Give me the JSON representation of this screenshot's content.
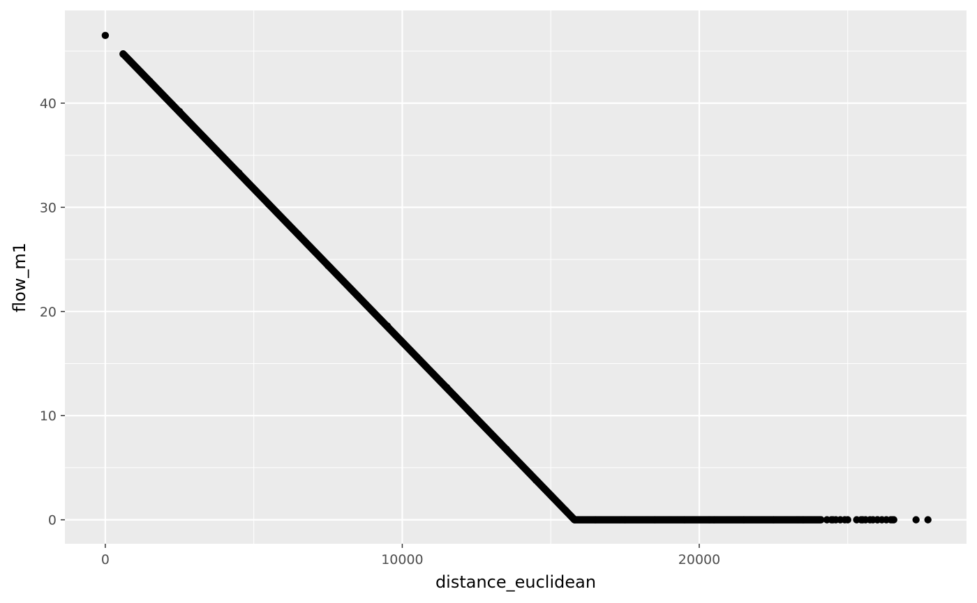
{
  "chart_data": {
    "type": "scatter",
    "title": "",
    "xlabel": "distance_euclidean",
    "ylabel": "flow_m1",
    "xlim": [
      -1360,
      29000
    ],
    "ylim": [
      -2.3,
      48.9
    ],
    "x_ticks": [
      0,
      10000,
      20000
    ],
    "x_tick_labels": [
      "0",
      "10000",
      "20000"
    ],
    "y_ticks": [
      0,
      10,
      20,
      30,
      40
    ],
    "y_tick_labels": [
      "0",
      "10",
      "20",
      "30",
      "40"
    ],
    "grid": true,
    "legend": "none",
    "colors": {
      "panel": "#ebebeb",
      "grid": "#ffffff",
      "points": "#000000"
    },
    "trend": {
      "description_free": true,
      "intercept": 46.5,
      "slope_per_unit": -0.00294,
      "zero_at_x": 15800,
      "dense_x_range": [
        600,
        15800
      ]
    },
    "series": [
      {
        "points": [
          [
            0,
            46.5
          ],
          [
            600,
            44.7
          ],
          [
            1500,
            42.1
          ],
          [
            2500,
            39.2
          ],
          [
            3500,
            36.2
          ],
          [
            4500,
            33.3
          ],
          [
            5500,
            30.3
          ],
          [
            6500,
            27.4
          ],
          [
            7500,
            24.4
          ],
          [
            8500,
            21.5
          ],
          [
            9500,
            18.6
          ],
          [
            10500,
            15.6
          ],
          [
            11500,
            12.7
          ],
          [
            12500,
            9.7
          ],
          [
            13500,
            6.8
          ],
          [
            14500,
            3.8
          ],
          [
            15500,
            0.9
          ],
          [
            15800,
            0
          ],
          [
            16500,
            0
          ],
          [
            17500,
            0
          ],
          [
            18500,
            0
          ],
          [
            19500,
            0
          ],
          [
            20500,
            0
          ],
          [
            21500,
            0
          ],
          [
            22500,
            0
          ],
          [
            23500,
            0
          ],
          [
            24500,
            0
          ],
          [
            25000,
            0
          ],
          [
            25500,
            0
          ],
          [
            26000,
            0
          ],
          [
            26500,
            0
          ],
          [
            27300,
            0
          ],
          [
            27700,
            0
          ]
        ]
      }
    ]
  }
}
